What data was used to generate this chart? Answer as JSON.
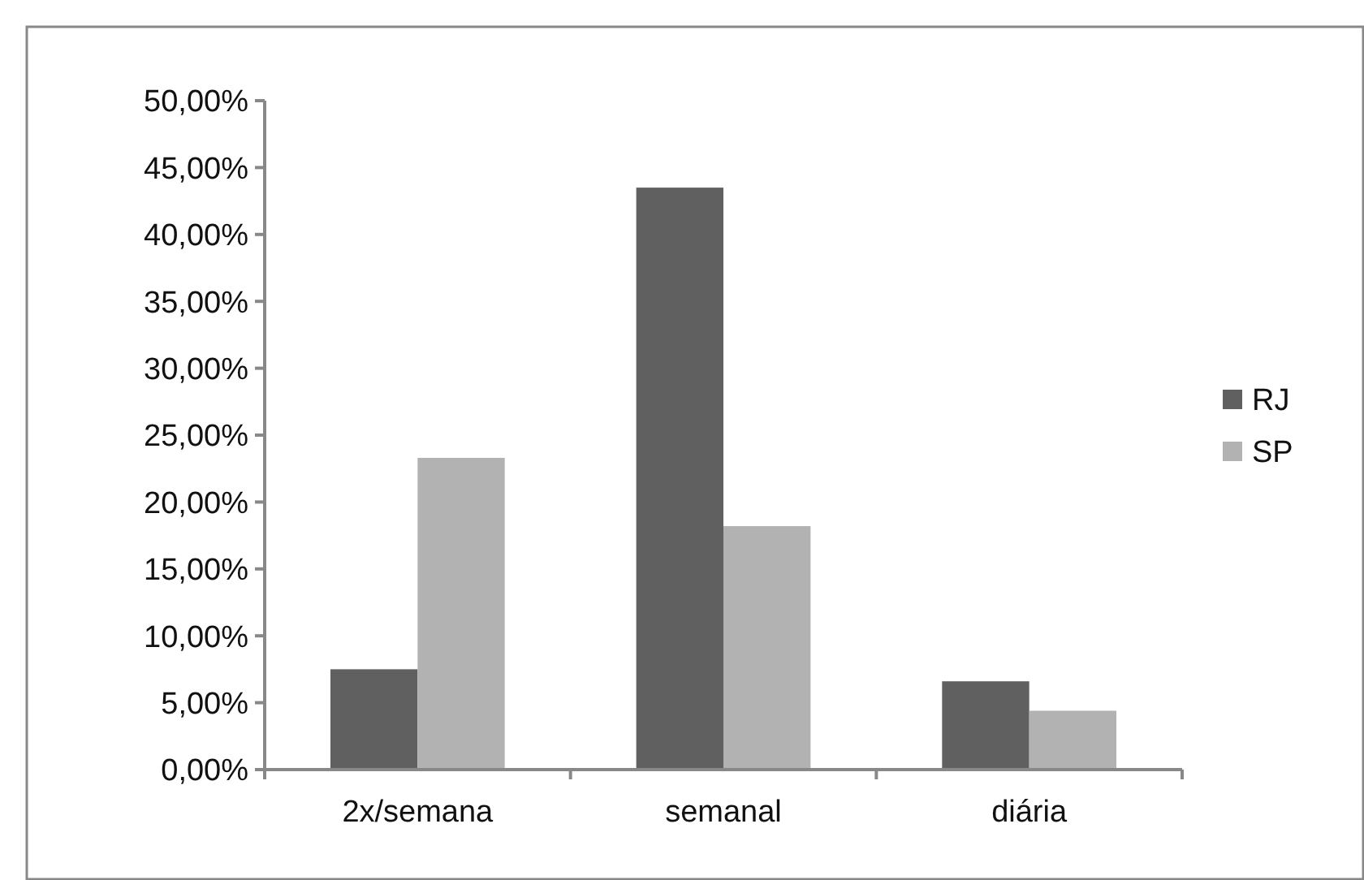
{
  "chart_data": {
    "type": "bar",
    "categories": [
      "2x/semana",
      "semanal",
      "diária"
    ],
    "series": [
      {
        "name": "RJ",
        "color": "#606060",
        "values": [
          7.5,
          43.5,
          6.6
        ]
      },
      {
        "name": "SP",
        "color": "#b2b2b2",
        "values": [
          23.3,
          18.2,
          4.4
        ]
      }
    ],
    "ylim": [
      0,
      50
    ],
    "yticks": [
      {
        "value": 0,
        "label": "0,00%"
      },
      {
        "value": 5,
        "label": "5,00%"
      },
      {
        "value": 10,
        "label": "10,00%"
      },
      {
        "value": 15,
        "label": "15,00%"
      },
      {
        "value": 20,
        "label": "20,00%"
      },
      {
        "value": 25,
        "label": "25,00%"
      },
      {
        "value": 30,
        "label": "30,00%"
      },
      {
        "value": 35,
        "label": "35,00%"
      },
      {
        "value": 40,
        "label": "40,00%"
      },
      {
        "value": 45,
        "label": "45,00%"
      },
      {
        "value": 50,
        "label": "50,00%"
      }
    ],
    "grid": false,
    "legend": "right"
  }
}
